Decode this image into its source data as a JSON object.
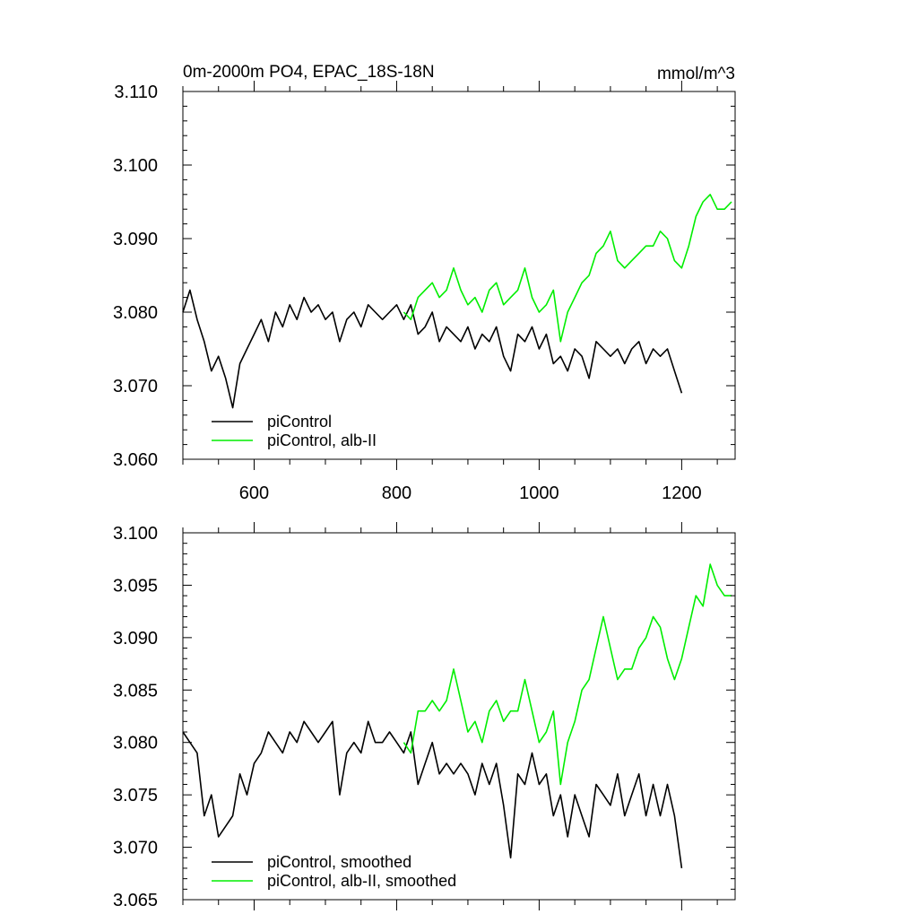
{
  "chart_data": [
    {
      "type": "line",
      "title": "0m-2000m PO4, EPAC_18S-18N",
      "units": "mmol/m^3",
      "xlim": [
        500,
        1275
      ],
      "ylim": [
        3.06,
        3.11
      ],
      "xticks": [
        600,
        800,
        1000,
        1200
      ],
      "xtick_labels": [
        "600",
        "800",
        "1000",
        "1200"
      ],
      "yticks": [
        3.06,
        3.07,
        3.08,
        3.09,
        3.1,
        3.11
      ],
      "ytick_labels": [
        "3.060",
        "3.070",
        "3.080",
        "3.090",
        "3.100",
        "3.110"
      ],
      "grid": false,
      "legend_position": "bottom-left",
      "series": [
        {
          "name": "piControl",
          "color": "#000000",
          "x": [
            500,
            510,
            520,
            530,
            540,
            550,
            560,
            570,
            580,
            590,
            600,
            610,
            620,
            630,
            640,
            650,
            660,
            670,
            680,
            690,
            700,
            710,
            720,
            730,
            740,
            750,
            760,
            770,
            780,
            790,
            800,
            810,
            820,
            830,
            840,
            850,
            860,
            870,
            880,
            890,
            900,
            910,
            920,
            930,
            940,
            950,
            960,
            970,
            980,
            990,
            1000,
            1010,
            1020,
            1030,
            1040,
            1050,
            1060,
            1070,
            1080,
            1090,
            1100,
            1110,
            1120,
            1130,
            1140,
            1150,
            1160,
            1170,
            1180,
            1190,
            1200
          ],
          "y": [
            3.08,
            3.083,
            3.079,
            3.076,
            3.072,
            3.074,
            3.071,
            3.067,
            3.073,
            3.075,
            3.077,
            3.079,
            3.076,
            3.08,
            3.078,
            3.081,
            3.079,
            3.082,
            3.08,
            3.081,
            3.079,
            3.08,
            3.076,
            3.079,
            3.08,
            3.078,
            3.081,
            3.08,
            3.079,
            3.08,
            3.081,
            3.079,
            3.081,
            3.077,
            3.078,
            3.08,
            3.076,
            3.078,
            3.077,
            3.076,
            3.078,
            3.075,
            3.077,
            3.076,
            3.078,
            3.074,
            3.072,
            3.077,
            3.076,
            3.078,
            3.075,
            3.077,
            3.073,
            3.074,
            3.072,
            3.075,
            3.074,
            3.071,
            3.076,
            3.075,
            3.074,
            3.075,
            3.073,
            3.075,
            3.076,
            3.073,
            3.075,
            3.074,
            3.075,
            3.072,
            3.069
          ]
        },
        {
          "name": "piControl, alb-II",
          "color": "#00ee00",
          "x": [
            810,
            820,
            830,
            840,
            850,
            860,
            870,
            880,
            890,
            900,
            910,
            920,
            930,
            940,
            950,
            960,
            970,
            980,
            990,
            1000,
            1010,
            1020,
            1030,
            1040,
            1050,
            1060,
            1070,
            1080,
            1090,
            1100,
            1110,
            1120,
            1130,
            1140,
            1150,
            1160,
            1170,
            1180,
            1190,
            1200,
            1210,
            1220,
            1230,
            1240,
            1250,
            1260,
            1270
          ],
          "y": [
            3.08,
            3.079,
            3.082,
            3.083,
            3.084,
            3.082,
            3.083,
            3.086,
            3.083,
            3.081,
            3.082,
            3.08,
            3.083,
            3.084,
            3.081,
            3.082,
            3.083,
            3.086,
            3.082,
            3.08,
            3.081,
            3.083,
            3.076,
            3.08,
            3.082,
            3.084,
            3.085,
            3.088,
            3.089,
            3.091,
            3.087,
            3.086,
            3.087,
            3.088,
            3.089,
            3.089,
            3.091,
            3.09,
            3.087,
            3.086,
            3.089,
            3.093,
            3.095,
            3.096,
            3.094,
            3.094,
            3.095
          ]
        }
      ]
    },
    {
      "type": "line",
      "title": "",
      "units": "",
      "xlim": [
        500,
        1275
      ],
      "ylim": [
        3.065,
        3.1
      ],
      "xticks": [
        600,
        800,
        1000,
        1200
      ],
      "xtick_labels": [],
      "yticks": [
        3.065,
        3.07,
        3.075,
        3.08,
        3.085,
        3.09,
        3.095,
        3.1
      ],
      "ytick_labels": [
        "3.065",
        "3.070",
        "3.075",
        "3.080",
        "3.085",
        "3.090",
        "3.095",
        "3.100"
      ],
      "grid": false,
      "legend_position": "bottom-left",
      "series": [
        {
          "name": "piControl, smoothed",
          "color": "#000000",
          "x": [
            500,
            510,
            520,
            530,
            540,
            550,
            560,
            570,
            580,
            590,
            600,
            610,
            620,
            630,
            640,
            650,
            660,
            670,
            680,
            690,
            700,
            710,
            720,
            730,
            740,
            750,
            760,
            770,
            780,
            790,
            800,
            810,
            820,
            830,
            840,
            850,
            860,
            870,
            880,
            890,
            900,
            910,
            920,
            930,
            940,
            950,
            960,
            970,
            980,
            990,
            1000,
            1010,
            1020,
            1030,
            1040,
            1050,
            1060,
            1070,
            1080,
            1090,
            1100,
            1110,
            1120,
            1130,
            1140,
            1150,
            1160,
            1170,
            1180,
            1190,
            1200
          ],
          "y": [
            3.081,
            3.08,
            3.079,
            3.073,
            3.075,
            3.071,
            3.072,
            3.073,
            3.077,
            3.075,
            3.078,
            3.079,
            3.081,
            3.08,
            3.079,
            3.081,
            3.08,
            3.082,
            3.081,
            3.08,
            3.081,
            3.082,
            3.075,
            3.079,
            3.08,
            3.079,
            3.082,
            3.08,
            3.08,
            3.081,
            3.08,
            3.079,
            3.081,
            3.076,
            3.078,
            3.08,
            3.077,
            3.078,
            3.077,
            3.078,
            3.077,
            3.075,
            3.078,
            3.076,
            3.078,
            3.074,
            3.069,
            3.077,
            3.076,
            3.079,
            3.076,
            3.077,
            3.073,
            3.075,
            3.071,
            3.075,
            3.073,
            3.071,
            3.076,
            3.075,
            3.074,
            3.077,
            3.073,
            3.075,
            3.077,
            3.073,
            3.076,
            3.073,
            3.076,
            3.073,
            3.068
          ]
        },
        {
          "name": "piControl, alb-II, smoothed",
          "color": "#00ee00",
          "x": [
            810,
            820,
            830,
            840,
            850,
            860,
            870,
            880,
            890,
            900,
            910,
            920,
            930,
            940,
            950,
            960,
            970,
            980,
            990,
            1000,
            1010,
            1020,
            1030,
            1040,
            1050,
            1060,
            1070,
            1080,
            1090,
            1100,
            1110,
            1120,
            1130,
            1140,
            1150,
            1160,
            1170,
            1180,
            1190,
            1200,
            1210,
            1220,
            1230,
            1240,
            1250,
            1260,
            1270
          ],
          "y": [
            3.08,
            3.079,
            3.083,
            3.083,
            3.084,
            3.083,
            3.084,
            3.087,
            3.084,
            3.081,
            3.082,
            3.08,
            3.083,
            3.084,
            3.082,
            3.083,
            3.083,
            3.086,
            3.083,
            3.08,
            3.081,
            3.083,
            3.076,
            3.08,
            3.082,
            3.085,
            3.086,
            3.089,
            3.092,
            3.089,
            3.086,
            3.087,
            3.087,
            3.089,
            3.09,
            3.092,
            3.091,
            3.088,
            3.086,
            3.088,
            3.091,
            3.094,
            3.093,
            3.097,
            3.095,
            3.094,
            3.094
          ]
        }
      ]
    }
  ]
}
